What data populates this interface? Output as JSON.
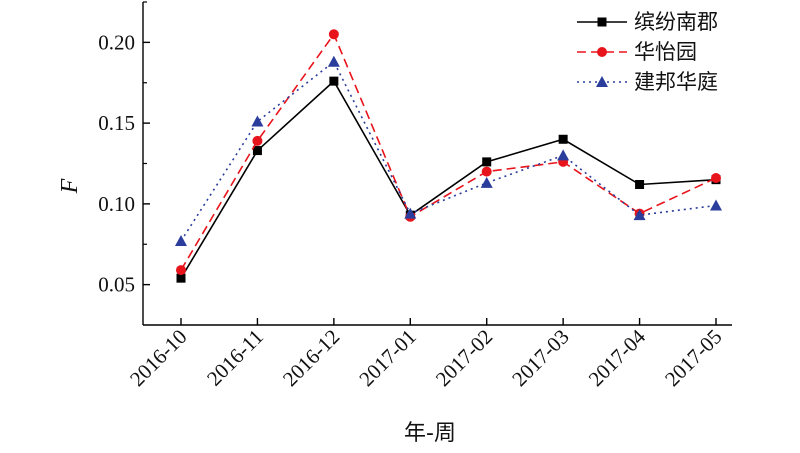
{
  "chart_data": {
    "type": "line",
    "title": "",
    "xlabel": "年-周",
    "ylabel": "F",
    "categories": [
      "2016-10",
      "2016-11",
      "2016-12",
      "2017-01",
      "2017-02",
      "2017-03",
      "2017-04",
      "2017-05"
    ],
    "ylim": [
      0.025,
      0.225
    ],
    "yticks": [
      "0.05",
      "0.10",
      "0.15",
      "0.20"
    ],
    "grid": false,
    "legend_position": "top-right",
    "series": [
      {
        "name": "缤纷南郡",
        "color": "#000000",
        "line_style": "solid",
        "marker": "square",
        "values": [
          0.054,
          0.133,
          0.176,
          0.093,
          0.126,
          0.14,
          0.112,
          0.115
        ]
      },
      {
        "name": "华怡园",
        "color": "#e8141c",
        "line_style": "dashed",
        "marker": "circle",
        "values": [
          0.059,
          0.139,
          0.205,
          0.092,
          0.12,
          0.126,
          0.094,
          0.116
        ]
      },
      {
        "name": "建邦华庭",
        "color": "#2a3d9c",
        "line_style": "dotted",
        "marker": "triangle",
        "values": [
          0.077,
          0.151,
          0.188,
          0.094,
          0.113,
          0.13,
          0.093,
          0.099
        ]
      }
    ]
  }
}
